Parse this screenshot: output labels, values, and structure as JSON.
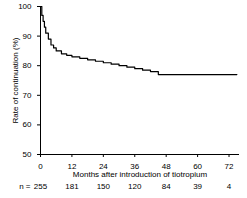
{
  "chart_data": {
    "type": "line",
    "line_style": "step",
    "color": "#000000",
    "x_label": "Months after introduction of tiotropium",
    "y_label": "Rate of continuation (%)",
    "x": [
      0,
      0.5,
      1,
      1.5,
      2,
      3,
      4,
      5,
      6,
      8,
      10,
      12,
      15,
      18,
      21,
      24,
      27,
      30,
      33,
      36,
      39,
      42,
      45,
      48,
      60,
      72,
      75
    ],
    "values": [
      100,
      97,
      95,
      93,
      91,
      89,
      87,
      86,
      85,
      84,
      83.5,
      83,
      82.5,
      82,
      81.5,
      81,
      80.5,
      80,
      79.5,
      79,
      78.5,
      78,
      77,
      77,
      77,
      77,
      77
    ],
    "xlim": [
      0,
      76
    ],
    "xticks": [
      0,
      12,
      24,
      36,
      48,
      60,
      72
    ],
    "ylim": [
      50,
      100
    ],
    "yticks": [
      50,
      60,
      70,
      80,
      90,
      100
    ],
    "grid": false,
    "at_risk": {
      "label": "n =",
      "x": [
        0,
        12,
        24,
        36,
        48,
        60,
        72
      ],
      "values": [
        255,
        181,
        150,
        120,
        84,
        39,
        4
      ]
    }
  }
}
